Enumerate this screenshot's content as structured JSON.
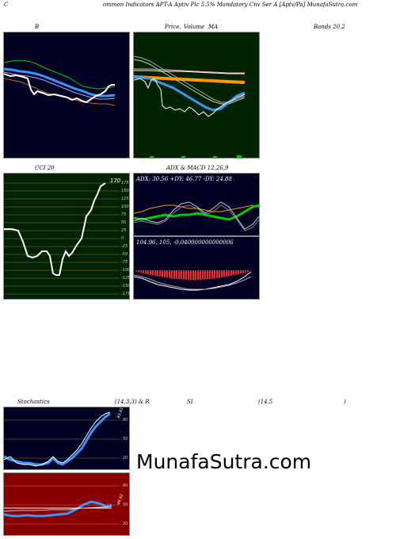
{
  "header": {
    "left": "C",
    "title": "ommon  Indicators APT-A Aptiv  Plc 5.5% Mandatory Cnv  Ser A [Aptv/Pa] MunafaSutra.com"
  },
  "row1": {
    "label_b": "B",
    "label_price": "Price,",
    "label_volume": "Volume",
    "label_ma": "MA",
    "label_bands": "Bands 20,2"
  },
  "row2": {
    "label_cci": "CCI 20",
    "label_adx_macd": "ADX  & MACD 12,26,9",
    "cci_value": "170",
    "cci_ticks": [
      "175",
      "150",
      "125",
      "100",
      "75",
      "50",
      "25",
      "0",
      "-25",
      "-50",
      "-75",
      "-100",
      "-125",
      "-150",
      "-175"
    ],
    "adx_info": "ADX: 30.56  +DY: 46.77 -DY: 24.88",
    "macd_info": "104.96,  105,  -0.040000000000006"
  },
  "row3": {
    "label_stoch": "Stochastics",
    "label_params": "(14,3,3) & R",
    "label_si": "SI",
    "label_rsi_params": "(14,5",
    "label_close": ")",
    "stoch_ticks": [
      "80",
      "50",
      "20"
    ],
    "rsi_ticks": [
      "80",
      "50",
      "20"
    ],
    "stoch_value": "83.81",
    "rsi_value": "49.91"
  },
  "watermark": "MunafaSutra.com",
  "colors": {
    "panel_navy": "#000022",
    "panel_green": "#002200",
    "panel_rsi": "#880000",
    "grid_gold": "#9a7a2a"
  }
}
